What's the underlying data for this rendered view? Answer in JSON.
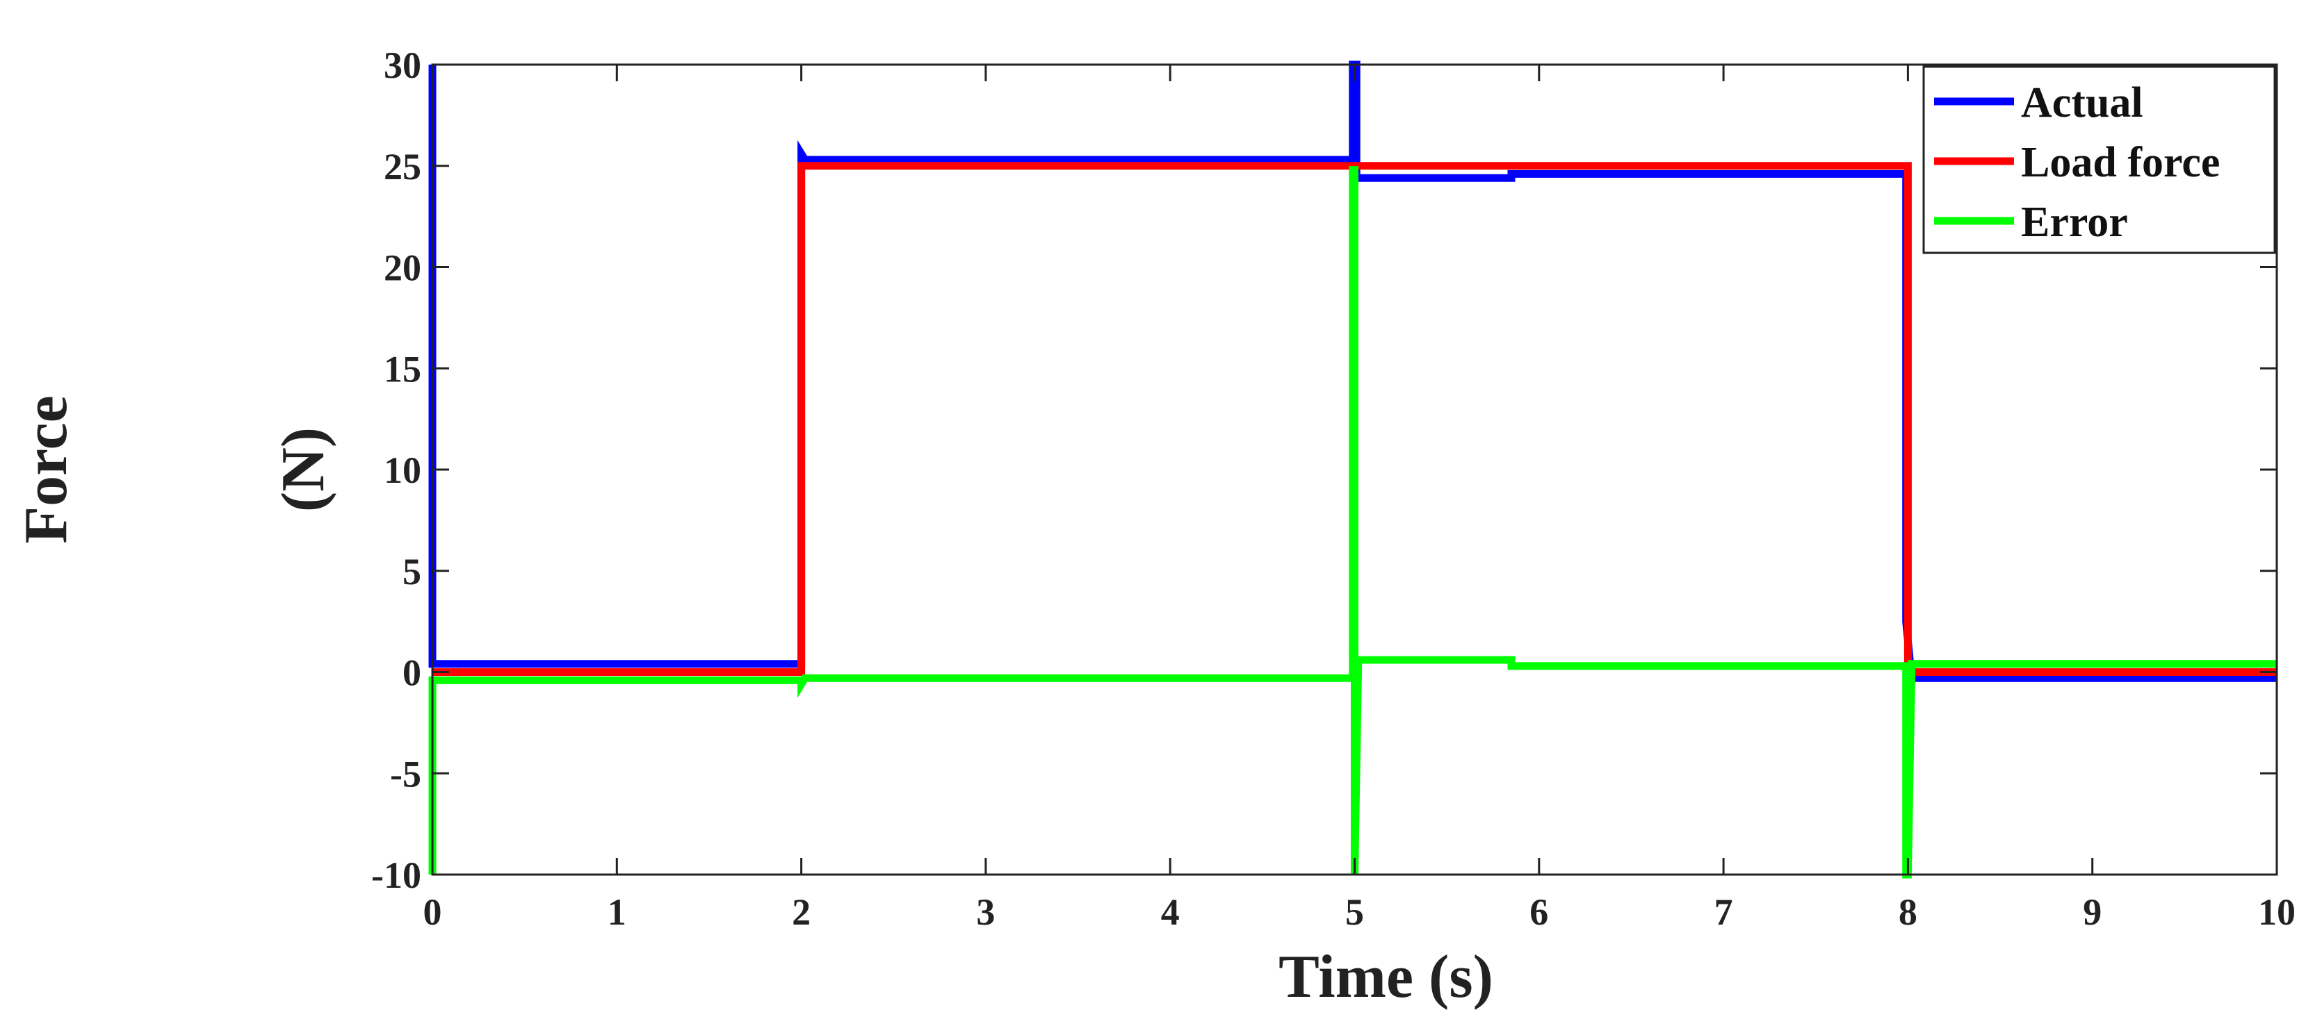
{
  "chart_data": {
    "type": "line",
    "xlabel": "Time (s)",
    "ylabel_line1": "Force",
    "ylabel_line2": "(N)",
    "xlim": [
      0,
      10
    ],
    "ylim": [
      -10,
      30
    ],
    "x_ticks": [
      "0",
      "1",
      "2",
      "3",
      "4",
      "5",
      "6",
      "7",
      "8",
      "9",
      "10"
    ],
    "y_ticks": [
      "-10",
      "-5",
      "0",
      "5",
      "10",
      "15",
      "20",
      "25",
      "30"
    ],
    "grid": false,
    "legend_position": "top-right",
    "series": [
      {
        "name": "Actual",
        "color": "#0000ff",
        "x": [
          0,
          0,
          0.02,
          2,
          2,
          2.02,
          4.99,
          4.99,
          5.01,
          5.01,
          5.85,
          5.85,
          7.99,
          7.99,
          8.02,
          10
        ],
        "y": [
          30,
          0.4,
          0.4,
          0.4,
          25.6,
          25.3,
          25.3,
          30,
          30,
          24.4,
          24.4,
          24.6,
          24.6,
          2.5,
          -0.3,
          -0.3
        ]
      },
      {
        "name": "Load force",
        "color": "#ff0000",
        "x": [
          0,
          2,
          2,
          5,
          5,
          8,
          8,
          10
        ],
        "y": [
          0,
          0,
          25,
          25,
          25,
          25,
          0,
          0
        ]
      },
      {
        "name": "Error",
        "color": "#00ff00",
        "x": [
          0,
          0,
          0.02,
          2,
          2,
          2.02,
          4.99,
          4.99,
          5.0,
          5.0,
          5.02,
          5.85,
          5.85,
          7.99,
          7.99,
          8.0,
          8.02,
          10
        ],
        "y": [
          -10,
          -0.4,
          -0.4,
          -0.4,
          -0.6,
          -0.3,
          -0.3,
          24.8,
          24.8,
          -10,
          0.6,
          0.6,
          0.3,
          0.3,
          -10,
          -10,
          0.4,
          0.4
        ]
      }
    ]
  }
}
